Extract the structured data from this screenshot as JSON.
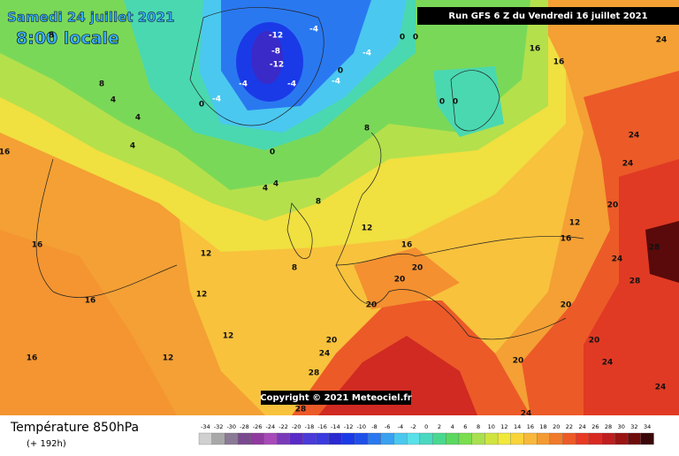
{
  "header": {
    "valid_date": "Samedi 24 juillet 2021",
    "valid_time": "8:00 locale",
    "run": "Run GFS 6 Z du Vendredi 16 juillet 2021"
  },
  "copyright": "Copyright © 2021 Meteociel.fr",
  "footer": {
    "title": "Température 850hPa",
    "lead_time": "(+ 192h)"
  },
  "contour_labels": [
    -12,
    -4,
    -8,
    -12,
    -4,
    -4,
    -4,
    -4,
    -4,
    0,
    0,
    0,
    0,
    0,
    0,
    0,
    4,
    4,
    4,
    4,
    4,
    8,
    8,
    8,
    8,
    8,
    12,
    12,
    12,
    12,
    12,
    12,
    16,
    16,
    16,
    16,
    16,
    16,
    16,
    16,
    20,
    20,
    20,
    20,
    20,
    20,
    20,
    20,
    24,
    24,
    24,
    24,
    24,
    24,
    24,
    24,
    28,
    28,
    28,
    28
  ],
  "scale": {
    "values": [
      -34,
      -32,
      -30,
      -28,
      -26,
      -24,
      -22,
      -20,
      -18,
      -16,
      -14,
      -12,
      -10,
      -8,
      -6,
      -4,
      -2,
      0,
      2,
      4,
      6,
      8,
      10,
      12,
      14,
      16,
      18,
      20,
      22,
      24,
      26,
      28,
      30,
      32,
      34
    ],
    "colors": [
      "#d0d0d0",
      "#a8a8a8",
      "#8a7a96",
      "#7a4a8e",
      "#8e3a9e",
      "#a84ab8",
      "#7a3ab8",
      "#5a2ac8",
      "#4a3ad8",
      "#3a3ae0",
      "#2a2ad0",
      "#1a3ae8",
      "#2050e8",
      "#2a78f0",
      "#3aa0f0",
      "#4ac8f0",
      "#5ae0e8",
      "#4ad8c0",
      "#4ad890",
      "#5ad860",
      "#7ade50",
      "#a8e050",
      "#d0e440",
      "#f0e83a",
      "#f8d43a",
      "#f8b83a",
      "#f49a32",
      "#f07a2a",
      "#ec5a28",
      "#e83a24",
      "#d82a22",
      "#c01e1e",
      "#9a1414",
      "#6e0c0c",
      "#3a0808"
    ]
  }
}
